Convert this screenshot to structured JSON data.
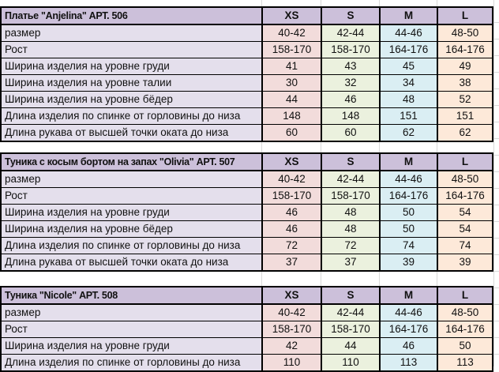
{
  "colors": {
    "header_fill": "#ccc0da",
    "label_fill": "#e4dfec",
    "column_fills": [
      "#f2dcdb",
      "#ebf1de",
      "#daeef3",
      "#fde9d9"
    ],
    "table_border": "#000000",
    "gridline": "#d9d9d9",
    "text": "#111111"
  },
  "size_headers": [
    "XS",
    "S",
    "M",
    "L"
  ],
  "tables": [
    {
      "title": "Платье \"Anjelina\" АРТ. 506",
      "rows": [
        {
          "label": "размер",
          "values": [
            "40-42",
            "42-44",
            "44-46",
            "48-50"
          ]
        },
        {
          "label": "Рост",
          "values": [
            "158-170",
            "158-170",
            "164-176",
            "164-176"
          ]
        },
        {
          "label": "Ширина изделия на уровне груди",
          "values": [
            "41",
            "43",
            "45",
            "49"
          ]
        },
        {
          "label": "Ширина изделия на уровне талии",
          "values": [
            "30",
            "32",
            "34",
            "38"
          ]
        },
        {
          "label": "Ширина изделия на уровне бёдер",
          "values": [
            "44",
            "46",
            "48",
            "52"
          ]
        },
        {
          "label": "Длина изделия по спинке от горловины до низа",
          "values": [
            "148",
            "148",
            "151",
            "151"
          ]
        },
        {
          "label": "Длина рукава от высшей точки оката до низа",
          "values": [
            "60",
            "60",
            "62",
            "62"
          ]
        }
      ]
    },
    {
      "title": "Туника с косым бортом на запах \"Olivia\" АРТ. 507",
      "rows": [
        {
          "label": "размер",
          "values": [
            "40-42",
            "42-44",
            "44-46",
            "48-50"
          ]
        },
        {
          "label": "Рост",
          "values": [
            "158-170",
            "158-170",
            "164-176",
            "164-176"
          ]
        },
        {
          "label": "Ширина изделия на уровне груди",
          "values": [
            "46",
            "48",
            "50",
            "54"
          ]
        },
        {
          "label": "Ширина изделия на уровне бёдер",
          "values": [
            "46",
            "48",
            "50",
            "54"
          ]
        },
        {
          "label": "Длина изделия по спинке от горловины до низа",
          "values": [
            "72",
            "72",
            "74",
            "74"
          ]
        },
        {
          "label": "Длина рукава от высшей точки оката до низа",
          "values": [
            "37",
            "37",
            "39",
            "39"
          ]
        }
      ]
    },
    {
      "title": "Туника \"Nicole\" АРТ. 508",
      "rows": [
        {
          "label": "размер",
          "values": [
            "40-42",
            "42-44",
            "44-46",
            "48-50"
          ]
        },
        {
          "label": "Рост",
          "values": [
            "158-170",
            "158-170",
            "164-176",
            "164-176"
          ]
        },
        {
          "label": "Ширина изделия на уровне груди",
          "values": [
            "42",
            "44",
            "46",
            "50"
          ]
        },
        {
          "label": "Длина изделия по спинке от горловины до низа",
          "values": [
            "110",
            "110",
            "113",
            "113"
          ]
        }
      ]
    }
  ]
}
